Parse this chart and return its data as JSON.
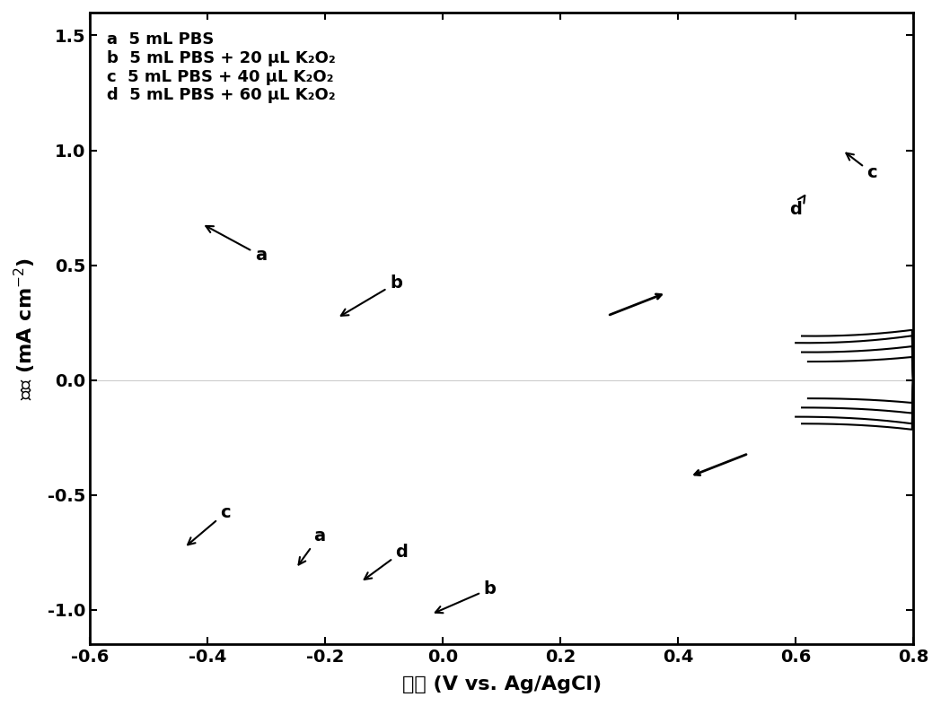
{
  "xlabel": "电压 (V vs. Ag/AgCl)",
  "ylabel": "电流 (mA cm⁻²)",
  "xlim": [
    -0.6,
    0.8
  ],
  "ylim": [
    -1.15,
    1.6
  ],
  "xticks": [
    -0.6,
    -0.4,
    -0.2,
    0.0,
    0.2,
    0.4,
    0.6,
    0.8
  ],
  "yticks": [
    -1.0,
    -0.5,
    0.0,
    0.5,
    1.0,
    1.5
  ],
  "legend_lines": [
    "a  5 mL PBS",
    "b  5 mL PBS + 20 μL K₂O₂",
    "c  5 mL PBS + 40 μL K₂O₂",
    "d  5 mL PBS + 60 μL K₂O₂"
  ],
  "curve_colors": [
    "black",
    "black",
    "black",
    "black"
  ],
  "linewidths": [
    1.5,
    1.5,
    1.5,
    1.5
  ],
  "background_color": "white",
  "figsize": [
    10.48,
    7.87
  ],
  "dpi": 100
}
